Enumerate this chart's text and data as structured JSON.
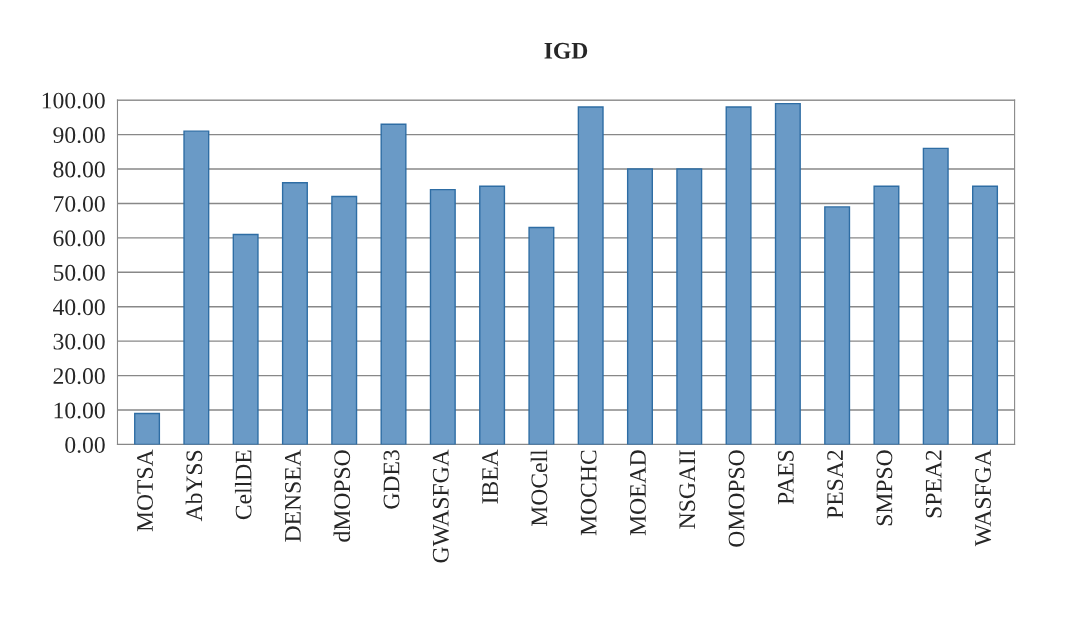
{
  "chart_data": {
    "type": "bar",
    "title": "IGD",
    "categories": [
      "MOTSA",
      "AbYSS",
      "CellDE",
      "DENSEA",
      "dMOPSO",
      "GDE3",
      "GWASFGA",
      "IBEA",
      "MOCell",
      "MOCHC",
      "MOEAD",
      "NSGAII",
      "OMOPSO",
      "PAES",
      "PESA2",
      "SMPSO",
      "SPEA2",
      "WASFGA"
    ],
    "values": [
      9,
      91,
      61,
      76,
      72,
      93,
      74,
      75,
      63,
      98,
      80,
      80,
      98,
      99,
      69,
      75,
      86,
      75
    ],
    "color": "#5b9bd5",
    "ylim": [
      0,
      100
    ],
    "yticks": [
      {
        "value": 0,
        "label": "0.00"
      },
      {
        "value": 10,
        "label": "10.00"
      },
      {
        "value": 20,
        "label": "20.00"
      },
      {
        "value": 30,
        "label": "30.00"
      },
      {
        "value": 40,
        "label": "40.00"
      },
      {
        "value": 50,
        "label": "50.00"
      },
      {
        "value": 60,
        "label": "60.00"
      },
      {
        "value": 70,
        "label": "70.00"
      },
      {
        "value": 80,
        "label": "80.00"
      },
      {
        "value": 90,
        "label": "90.00"
      },
      {
        "value": 100,
        "label": "100.00"
      }
    ],
    "grid": "y",
    "legend": false
  }
}
